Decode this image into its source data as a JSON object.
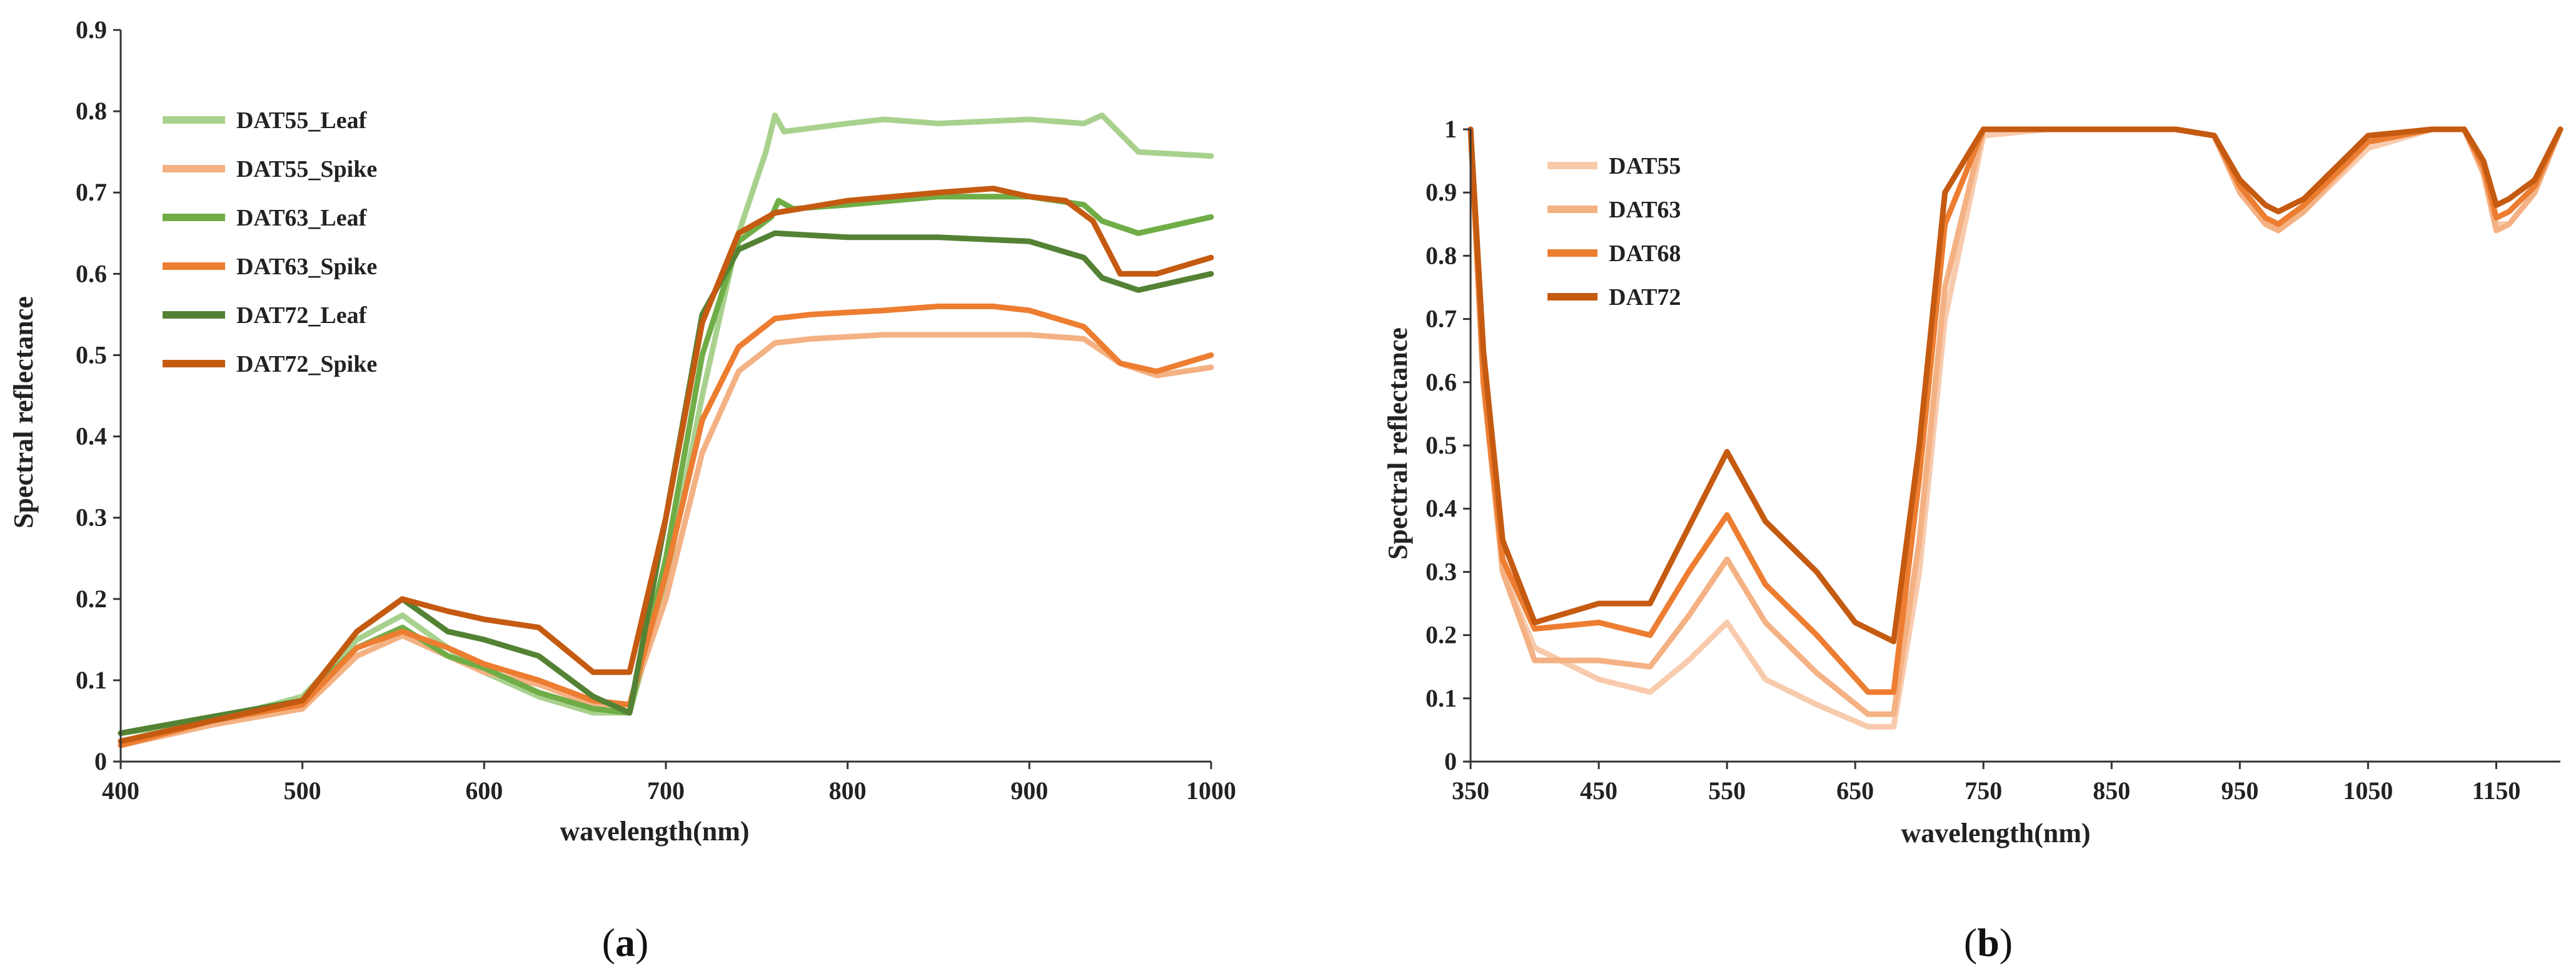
{
  "captions": {
    "a": "a",
    "b": "b"
  },
  "chart_data": [
    {
      "type": "line",
      "id": "a",
      "title": "",
      "xlabel": "wavelength(nm)",
      "ylabel": "Spectral reflectance",
      "xlim": [
        400,
        1000
      ],
      "ylim": [
        0,
        0.9
      ],
      "xticks": [
        "400",
        "500",
        "600",
        "700",
        "800",
        "900",
        "1000"
      ],
      "yticks": [
        "0",
        "0.1",
        "0.2",
        "0.3",
        "0.4",
        "0.5",
        "0.6",
        "0.7",
        "0.8",
        "0.9"
      ],
      "legend_position": "top-left",
      "series": [
        {
          "name": "DAT55_Leaf",
          "color": "#a9d18e",
          "x": [
            400,
            450,
            500,
            530,
            555,
            580,
            600,
            630,
            660,
            680,
            700,
            720,
            740,
            755,
            760,
            765,
            800,
            820,
            850,
            900,
            930,
            940,
            960,
            1000
          ],
          "y": [
            0.035,
            0.05,
            0.08,
            0.15,
            0.18,
            0.14,
            0.11,
            0.08,
            0.06,
            0.06,
            0.22,
            0.45,
            0.65,
            0.75,
            0.795,
            0.775,
            0.785,
            0.79,
            0.785,
            0.79,
            0.785,
            0.795,
            0.75,
            0.745
          ]
        },
        {
          "name": "DAT55_Spike",
          "color": "#f4b183",
          "x": [
            400,
            450,
            500,
            530,
            555,
            580,
            600,
            630,
            660,
            680,
            700,
            720,
            740,
            760,
            780,
            820,
            850,
            900,
            930,
            950,
            970,
            1000
          ],
          "y": [
            0.02,
            0.045,
            0.065,
            0.13,
            0.155,
            0.13,
            0.11,
            0.095,
            0.07,
            0.07,
            0.2,
            0.38,
            0.48,
            0.515,
            0.52,
            0.525,
            0.525,
            0.525,
            0.52,
            0.49,
            0.475,
            0.485
          ]
        },
        {
          "name": "DAT63_Leaf",
          "color": "#70ad47",
          "x": [
            400,
            450,
            500,
            530,
            555,
            580,
            600,
            630,
            660,
            680,
            700,
            720,
            740,
            758,
            762,
            770,
            800,
            850,
            900,
            930,
            940,
            960,
            1000
          ],
          "y": [
            0.035,
            0.055,
            0.075,
            0.14,
            0.165,
            0.13,
            0.115,
            0.085,
            0.065,
            0.06,
            0.25,
            0.5,
            0.64,
            0.67,
            0.69,
            0.68,
            0.685,
            0.695,
            0.695,
            0.685,
            0.665,
            0.65,
            0.67
          ]
        },
        {
          "name": "DAT63_Spike",
          "color": "#ed7d31",
          "x": [
            400,
            450,
            500,
            530,
            555,
            580,
            600,
            630,
            660,
            680,
            700,
            720,
            740,
            760,
            780,
            820,
            850,
            880,
            900,
            930,
            950,
            970,
            1000
          ],
          "y": [
            0.02,
            0.05,
            0.07,
            0.14,
            0.16,
            0.14,
            0.12,
            0.1,
            0.075,
            0.07,
            0.23,
            0.42,
            0.51,
            0.545,
            0.55,
            0.555,
            0.56,
            0.56,
            0.555,
            0.535,
            0.49,
            0.48,
            0.5
          ]
        },
        {
          "name": "DAT72_Leaf",
          "color": "#548235",
          "x": [
            400,
            450,
            500,
            530,
            555,
            580,
            600,
            630,
            660,
            680,
            700,
            720,
            740,
            760,
            800,
            850,
            900,
            930,
            940,
            960,
            1000
          ],
          "y": [
            0.035,
            0.055,
            0.075,
            0.16,
            0.2,
            0.16,
            0.15,
            0.13,
            0.08,
            0.06,
            0.3,
            0.55,
            0.63,
            0.65,
            0.645,
            0.645,
            0.64,
            0.62,
            0.595,
            0.58,
            0.6
          ]
        },
        {
          "name": "DAT72_Spike",
          "color": "#c55a11",
          "x": [
            400,
            450,
            500,
            530,
            555,
            580,
            600,
            630,
            660,
            680,
            700,
            720,
            740,
            760,
            800,
            850,
            880,
            900,
            920,
            935,
            950,
            970,
            1000
          ],
          "y": [
            0.025,
            0.05,
            0.075,
            0.16,
            0.2,
            0.185,
            0.175,
            0.165,
            0.11,
            0.11,
            0.3,
            0.54,
            0.65,
            0.675,
            0.69,
            0.7,
            0.705,
            0.695,
            0.69,
            0.665,
            0.6,
            0.6,
            0.62
          ]
        }
      ]
    },
    {
      "type": "line",
      "id": "b",
      "title": "",
      "xlabel": "wavelength(nm)",
      "ylabel": "Spectral reflectance",
      "xlim": [
        350,
        1200
      ],
      "ylim": [
        0,
        1
      ],
      "xticks": [
        "350",
        "450",
        "550",
        "650",
        "750",
        "850",
        "950",
        "1050",
        "1150"
      ],
      "yticks": [
        "0",
        "0.1",
        "0.2",
        "0.3",
        "0.4",
        "0.5",
        "0.6",
        "0.7",
        "0.8",
        "0.9",
        "1"
      ],
      "legend_position": "top-left",
      "series": [
        {
          "name": "DAT55",
          "color": "#f8cbad",
          "x": [
            350,
            360,
            375,
            400,
            450,
            490,
            520,
            550,
            580,
            620,
            660,
            680,
            700,
            720,
            750,
            800,
            900,
            930,
            950,
            970,
            980,
            1000,
            1050,
            1100,
            1125,
            1140,
            1150,
            1160,
            1180,
            1200
          ],
          "y": [
            1,
            0.6,
            0.3,
            0.18,
            0.13,
            0.11,
            0.16,
            0.22,
            0.13,
            0.09,
            0.055,
            0.055,
            0.3,
            0.7,
            0.99,
            1,
            1,
            0.99,
            0.9,
            0.85,
            0.84,
            0.87,
            0.97,
            1,
            1,
            0.93,
            0.85,
            0.85,
            0.9,
            1
          ]
        },
        {
          "name": "DAT63",
          "color": "#f4b183",
          "x": [
            350,
            360,
            375,
            400,
            450,
            490,
            520,
            550,
            580,
            620,
            660,
            680,
            700,
            720,
            750,
            800,
            900,
            930,
            950,
            970,
            980,
            1000,
            1050,
            1100,
            1125,
            1140,
            1150,
            1160,
            1180,
            1200
          ],
          "y": [
            1,
            0.6,
            0.3,
            0.16,
            0.16,
            0.15,
            0.23,
            0.32,
            0.22,
            0.14,
            0.075,
            0.075,
            0.35,
            0.75,
            1,
            1,
            1,
            0.99,
            0.9,
            0.85,
            0.84,
            0.87,
            0.98,
            1,
            1,
            0.93,
            0.84,
            0.85,
            0.9,
            1
          ]
        },
        {
          "name": "DAT68",
          "color": "#ed7d31",
          "x": [
            350,
            360,
            375,
            400,
            450,
            490,
            520,
            550,
            580,
            620,
            660,
            680,
            700,
            720,
            750,
            800,
            900,
            930,
            950,
            970,
            980,
            1000,
            1050,
            1100,
            1125,
            1140,
            1150,
            1160,
            1180,
            1200
          ],
          "y": [
            1,
            0.6,
            0.32,
            0.21,
            0.22,
            0.2,
            0.3,
            0.39,
            0.28,
            0.2,
            0.11,
            0.11,
            0.45,
            0.85,
            1,
            1,
            1,
            0.99,
            0.91,
            0.86,
            0.85,
            0.88,
            0.98,
            1,
            1,
            0.94,
            0.86,
            0.87,
            0.91,
            1
          ]
        },
        {
          "name": "DAT72",
          "color": "#c55a11",
          "x": [
            350,
            360,
            375,
            400,
            450,
            490,
            520,
            550,
            580,
            620,
            650,
            680,
            700,
            720,
            750,
            800,
            900,
            930,
            950,
            970,
            980,
            1000,
            1050,
            1100,
            1125,
            1140,
            1150,
            1160,
            1180,
            1200
          ],
          "y": [
            1,
            0.65,
            0.35,
            0.22,
            0.25,
            0.25,
            0.37,
            0.49,
            0.38,
            0.3,
            0.22,
            0.19,
            0.5,
            0.9,
            1,
            1,
            1,
            0.99,
            0.92,
            0.88,
            0.87,
            0.89,
            0.99,
            1,
            1,
            0.95,
            0.88,
            0.89,
            0.92,
            1
          ]
        }
      ]
    }
  ]
}
